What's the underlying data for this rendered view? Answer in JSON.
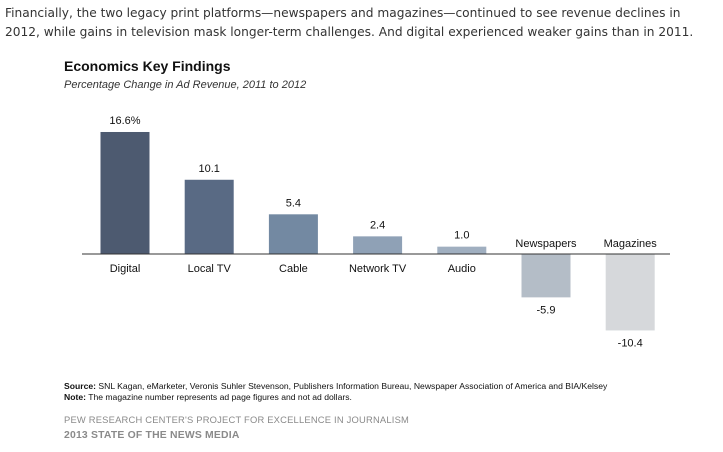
{
  "intro_text": "Financially, the two legacy print platforms—newspapers and magazines—continued to see revenue declines in 2012, while gains in television mask longer-term challenges. And digital experienced weaker gains than in 2011.",
  "chart_data": {
    "type": "bar",
    "title": "Economics Key Findings",
    "subtitle": "Percentage Change in Ad Revenue, 2011 to 2012",
    "categories": [
      "Digital",
      "Local TV",
      "Cable",
      "Network TV",
      "Audio",
      "Newspapers",
      "Magazines"
    ],
    "values": [
      16.6,
      10.1,
      5.4,
      2.4,
      1.0,
      -5.9,
      -10.4
    ],
    "value_labels": [
      "16.6%",
      "10.1",
      "5.4",
      "2.4",
      "1.0",
      "-5.9",
      "-10.4"
    ],
    "colors": [
      "#4d5a70",
      "#596a84",
      "#7389a2",
      "#8fa1b6",
      "#a0afc0",
      "#b4bdc7",
      "#d6d8db"
    ],
    "xlabel": "",
    "ylabel": "",
    "ylim": [
      -12,
      18
    ],
    "grid": false
  },
  "source": {
    "label": "Source:",
    "text": "SNL Kagan, eMarketer, Veronis Suhler Stevenson, Publishers Information Bureau, Newspaper Association of America and BIA/Kelsey"
  },
  "note": {
    "label": "Note:",
    "text": "The magazine number represents ad page figures and not ad dollars."
  },
  "footer": {
    "org": "PEW RESEARCH CENTER'S PROJECT FOR EXCELLENCE IN JOURNALISM",
    "report": "2013 STATE OF THE NEWS MEDIA"
  }
}
